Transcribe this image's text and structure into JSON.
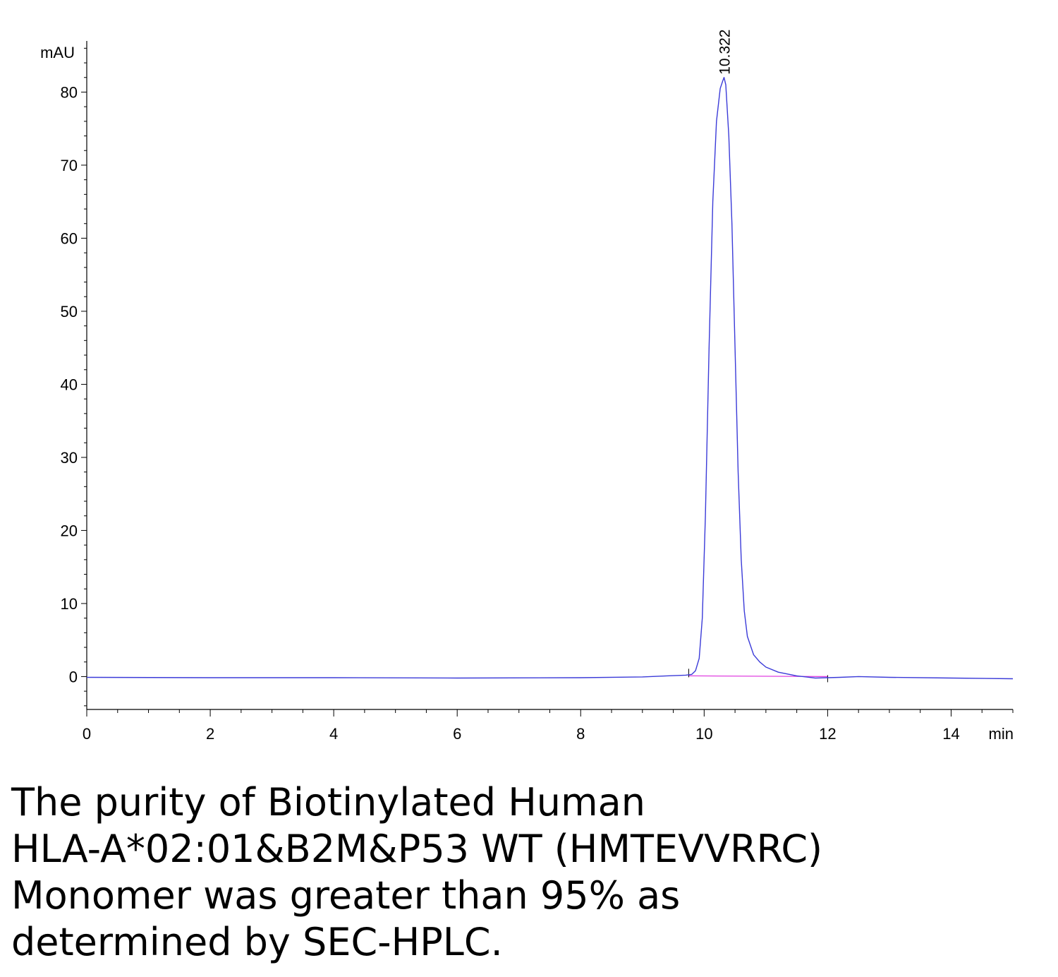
{
  "chart_data": {
    "type": "line",
    "ylabel": "mAU",
    "xlabel": "min",
    "xlim": [
      0,
      15
    ],
    "ylim": [
      -4.5,
      87
    ],
    "x_ticks": [
      0,
      2,
      4,
      6,
      8,
      10,
      12,
      14
    ],
    "y_ticks": [
      0,
      10,
      20,
      30,
      40,
      50,
      60,
      70,
      80
    ],
    "series": [
      {
        "color": "#3b3bd8",
        "x": [
          0,
          2,
          4,
          6,
          8,
          9,
          9.4,
          9.7,
          9.8,
          9.86,
          9.92,
          9.97,
          10.02,
          10.08,
          10.14,
          10.2,
          10.26,
          10.3,
          10.322,
          10.35,
          10.4,
          10.45,
          10.5,
          10.55,
          10.6,
          10.65,
          10.7,
          10.8,
          10.9,
          11.0,
          11.2,
          11.5,
          11.8,
          12.2,
          12.5,
          13,
          14,
          15
        ],
        "y": [
          -0.1,
          -0.15,
          -0.15,
          -0.2,
          -0.15,
          -0.05,
          0.1,
          0.2,
          0.3,
          0.8,
          2.5,
          8,
          22,
          45,
          65,
          76,
          80.5,
          81.5,
          82,
          81,
          74,
          62,
          45,
          28,
          16,
          9,
          5.5,
          3,
          2,
          1.3,
          0.6,
          0.1,
          -0.2,
          -0.1,
          0.0,
          -0.1,
          -0.2,
          -0.3
        ]
      }
    ],
    "baseline": {
      "color": "#e040e0",
      "x": [
        9.75,
        12.0
      ],
      "y": [
        0.1,
        0.0
      ]
    },
    "peak_annotations": [
      {
        "x": 10.322,
        "y": 82,
        "label": "10.322"
      }
    ]
  },
  "caption": {
    "lines": [
      "The purity of Biotinylated Human",
      "HLA-A*02:01&B2M&P53 WT (HMTEVVRRC)",
      "Monomer was greater than 95% as",
      "determined by SEC-HPLC."
    ]
  }
}
